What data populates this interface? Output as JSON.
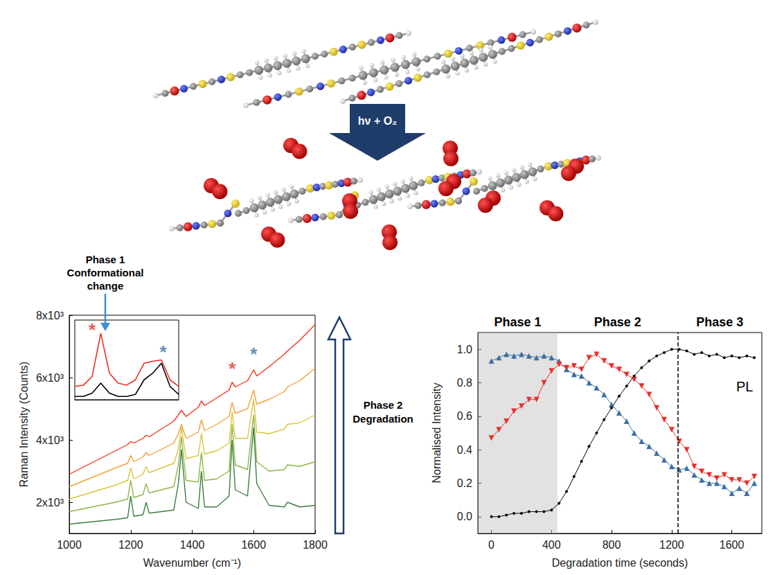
{
  "diagram": {
    "arrow_label": "hν + O₂"
  },
  "chart_data": [
    {
      "type": "line",
      "x_label": "Wavenumber (cm⁻¹)",
      "y_label": "Raman Intensity (Counts)",
      "xlim": [
        1000,
        1800
      ],
      "xticks": [
        1000,
        1200,
        1400,
        1600,
        1800
      ],
      "ylim": [
        1000,
        8000
      ],
      "yticks": [
        {
          "value": 2000,
          "label": "2x10³"
        },
        {
          "value": 4000,
          "label": "4x10³"
        },
        {
          "value": 6000,
          "label": "6x10³"
        },
        {
          "value": 8000,
          "label": "8x10³"
        }
      ],
      "grid": false,
      "annotation": [
        "Phase 2",
        "Degradation"
      ],
      "x": [
        1000,
        1050,
        1100,
        1150,
        1190,
        1200,
        1210,
        1240,
        1250,
        1260,
        1300,
        1340,
        1355,
        1365,
        1380,
        1420,
        1430,
        1440,
        1480,
        1520,
        1530,
        1540,
        1580,
        1600,
        1610,
        1650,
        1700,
        1710,
        1750,
        1800
      ],
      "series": [
        {
          "color": "#3a7d3a",
          "values": [
            1300,
            1350,
            1400,
            1450,
            1500,
            2200,
            1550,
            1600,
            2000,
            1650,
            1700,
            1750,
            2600,
            3700,
            2000,
            1800,
            3000,
            1850,
            1850,
            2200,
            4000,
            2400,
            2200,
            4400,
            2600,
            1900,
            1850,
            2000,
            1850,
            1900
          ]
        },
        {
          "color": "#8fb443",
          "values": [
            1700,
            1800,
            1900,
            2000,
            2100,
            2700,
            2150,
            2250,
            2600,
            2300,
            2400,
            2500,
            3200,
            4100,
            2700,
            2650,
            3600,
            2700,
            2750,
            3000,
            4500,
            3200,
            3050,
            4800,
            3300,
            3000,
            3050,
            3200,
            3150,
            3300
          ]
        },
        {
          "color": "#d8c53a",
          "values": [
            2100,
            2250,
            2400,
            2550,
            2700,
            3100,
            2750,
            2900,
            3150,
            2950,
            3100,
            3250,
            3700,
            4400,
            3400,
            3500,
            4200,
            3550,
            3650,
            3900,
            4900,
            4050,
            4050,
            5300,
            4250,
            4200,
            4350,
            4500,
            4550,
            4800
          ]
        },
        {
          "color": "#f0a035",
          "values": [
            2500,
            2700,
            2900,
            3100,
            3250,
            3500,
            3300,
            3450,
            3600,
            3500,
            3700,
            3900,
            4200,
            4500,
            4050,
            4250,
            4650,
            4300,
            4500,
            4750,
            5200,
            4850,
            5000,
            5600,
            5150,
            5300,
            5550,
            5700,
            5900,
            6300
          ]
        },
        {
          "color": "#f0321e",
          "values": [
            2900,
            3150,
            3400,
            3650,
            3850,
            3950,
            3900,
            4050,
            4150,
            4100,
            4350,
            4600,
            4800,
            4950,
            4750,
            5050,
            5250,
            5100,
            5350,
            5600,
            5850,
            5700,
            5900,
            6250,
            6050,
            6350,
            6750,
            6850,
            7200,
            7700
          ]
        }
      ],
      "markers": [
        {
          "text": "*",
          "x": 1530,
          "y": 6300,
          "color": "#e8302a"
        },
        {
          "text": "*",
          "x": 1600,
          "y": 6750,
          "color": "#3c6fa3"
        }
      ]
    },
    {
      "type": "line",
      "tick_labels": false,
      "grid": false,
      "annotation": [
        "Phase 1",
        "Conformational",
        "change"
      ],
      "xlim": [
        1500,
        1620
      ],
      "ylim": [
        0,
        1.2
      ],
      "x": [
        1500,
        1510,
        1520,
        1530,
        1540,
        1550,
        1560,
        1570,
        1580,
        1590,
        1600,
        1610,
        1620
      ],
      "series": [
        {
          "color": "#ee2b1f",
          "values": [
            0.2,
            0.22,
            0.35,
            1.0,
            0.4,
            0.25,
            0.22,
            0.3,
            0.55,
            0.58,
            0.6,
            0.3,
            0.2
          ]
        },
        {
          "color": "#000000",
          "values": [
            0.05,
            0.05,
            0.1,
            0.25,
            0.1,
            0.05,
            0.05,
            0.08,
            0.3,
            0.4,
            0.55,
            0.2,
            0.08
          ]
        }
      ],
      "markers": [
        {
          "text": "*",
          "x": 1520,
          "y": 1.05,
          "color": "#e8302a"
        },
        {
          "text": "*",
          "x": 1602,
          "y": 0.72,
          "color": "#3c6fa3"
        }
      ]
    },
    {
      "type": "line",
      "x_label": "Degradation time (seconds)",
      "y_label": "Normalised Intensity",
      "xlim": [
        -90,
        1800
      ],
      "xticks": [
        0,
        400,
        800,
        1200,
        1600
      ],
      "ylim": [
        -0.1,
        1.1
      ],
      "yticks": [
        {
          "value": 0,
          "label": "0.0"
        },
        0.2,
        0.4,
        0.6,
        0.8,
        {
          "value": 1,
          "label": "1.0"
        }
      ],
      "grid": false,
      "phases": [
        {
          "label": "Phase 1",
          "range": [
            -90,
            440
          ],
          "shaded": true
        },
        {
          "label": "Phase 2",
          "range": [
            440,
            1240
          ],
          "shaded": false
        },
        {
          "label": "Phase 3",
          "range": [
            1240,
            1800
          ],
          "shaded": false
        }
      ],
      "vline": {
        "x": 1240,
        "line_style": "dashed"
      },
      "x": [
        0,
        50,
        100,
        150,
        200,
        250,
        300,
        350,
        400,
        450,
        500,
        550,
        600,
        650,
        700,
        750,
        800,
        850,
        900,
        950,
        1000,
        1050,
        1100,
        1150,
        1200,
        1250,
        1300,
        1350,
        1400,
        1450,
        1500,
        1550,
        1600,
        1650,
        1700,
        1750
      ],
      "series": [
        {
          "color": "#3c6fa3",
          "marker": "triangle-up",
          "line_style": "solid",
          "values": [
            0.93,
            0.95,
            0.97,
            0.96,
            0.97,
            0.96,
            0.95,
            0.96,
            0.95,
            0.93,
            0.88,
            0.85,
            0.84,
            0.8,
            0.77,
            0.73,
            0.67,
            0.62,
            0.57,
            0.5,
            0.45,
            0.42,
            0.38,
            0.34,
            0.3,
            0.28,
            0.29,
            0.25,
            0.22,
            0.2,
            0.2,
            0.18,
            0.14,
            0.17,
            0.14,
            0.2
          ]
        },
        {
          "color": "#e8302a",
          "marker": "triangle-down",
          "line_style": "solid",
          "values": [
            0.47,
            0.52,
            0.57,
            0.63,
            0.66,
            0.7,
            0.7,
            0.8,
            0.87,
            0.91,
            0.89,
            0.9,
            0.88,
            0.95,
            0.97,
            0.93,
            0.9,
            0.88,
            0.85,
            0.82,
            0.78,
            0.73,
            0.65,
            0.58,
            0.52,
            0.45,
            0.4,
            0.3,
            0.27,
            0.25,
            0.23,
            0.25,
            0.22,
            0.22,
            0.2,
            0.24
          ]
        },
        {
          "name": "PL",
          "color": "#000000",
          "marker": "circle",
          "line_style": "solid",
          "values": [
            0.0,
            0.0,
            0.01,
            0.02,
            0.02,
            0.03,
            0.03,
            0.03,
            0.04,
            0.08,
            0.15,
            0.24,
            0.33,
            0.42,
            0.5,
            0.58,
            0.65,
            0.72,
            0.78,
            0.84,
            0.89,
            0.93,
            0.96,
            0.98,
            1.0,
            1.0,
            0.99,
            0.97,
            0.98,
            0.96,
            0.97,
            0.95,
            0.96,
            0.95,
            0.96,
            0.95
          ]
        }
      ]
    }
  ]
}
